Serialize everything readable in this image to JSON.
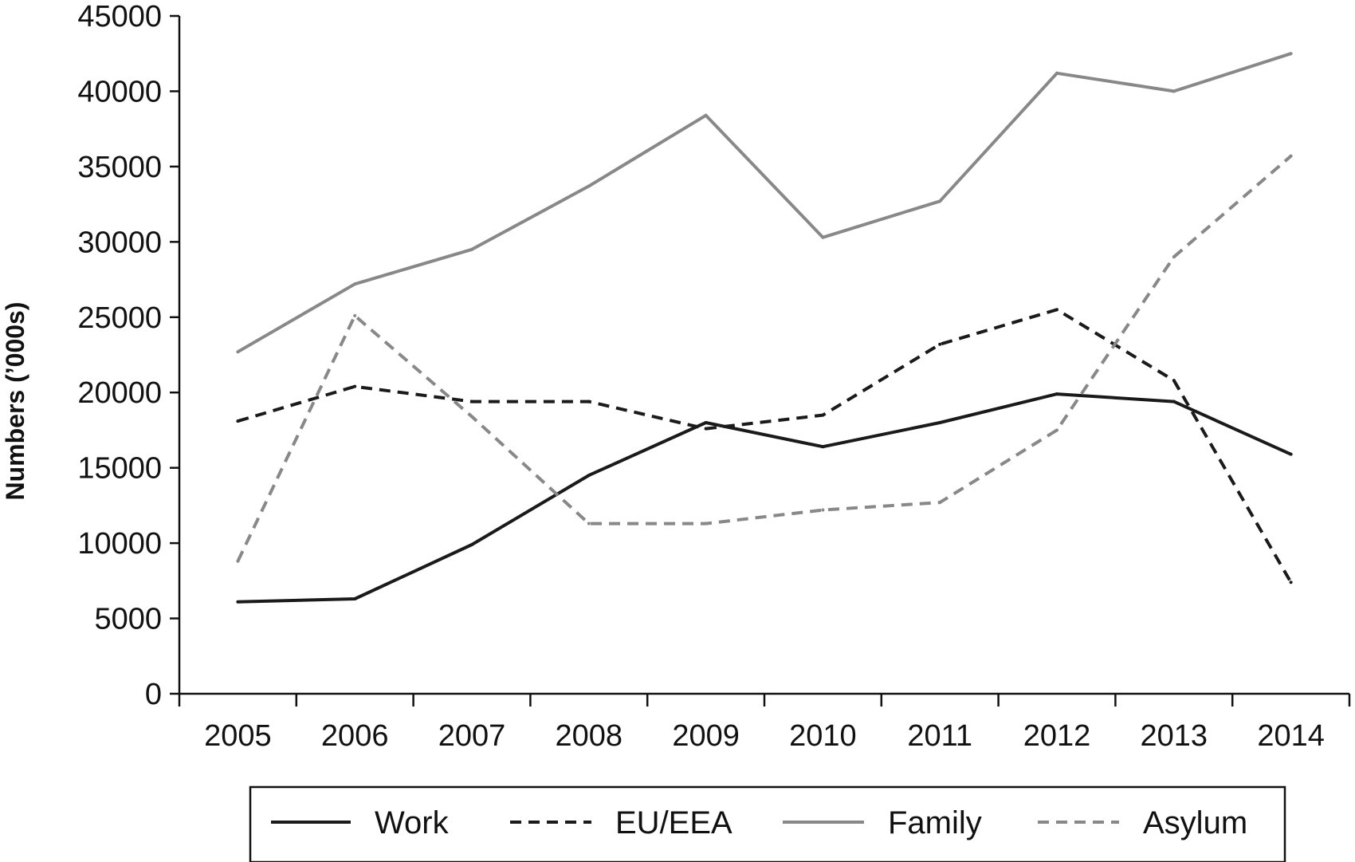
{
  "chart_data": {
    "type": "line",
    "title": "",
    "xlabel": "",
    "ylabel": "Numbers (’000s)",
    "categories": [
      "2005",
      "2006",
      "2007",
      "2008",
      "2009",
      "2010",
      "2011",
      "2012",
      "2013",
      "2014"
    ],
    "ylim": [
      0,
      45000
    ],
    "yticks": [
      "0",
      "5000",
      "10000",
      "15000",
      "20000",
      "25000",
      "30000",
      "35000",
      "40000",
      "45000"
    ],
    "grid": false,
    "legend_position": "bottom",
    "series": [
      {
        "name": "Work",
        "color": "#1a1a1a",
        "dash": "solid",
        "values": [
          6100,
          6300,
          9900,
          14500,
          18000,
          16400,
          18000,
          19900,
          19400,
          15900
        ]
      },
      {
        "name": "EU/EEA",
        "color": "#1a1a1a",
        "dash": "dashed",
        "values": [
          18100,
          20400,
          19400,
          19400,
          17600,
          18500,
          23200,
          25500,
          20800,
          7400
        ]
      },
      {
        "name": "Family",
        "color": "#888888",
        "dash": "solid",
        "values": [
          22700,
          27200,
          29500,
          33700,
          38400,
          30300,
          32700,
          41200,
          40000,
          42500
        ]
      },
      {
        "name": "Asylum",
        "color": "#888888",
        "dash": "dashed",
        "values": [
          8800,
          25100,
          18400,
          11300,
          11300,
          12200,
          12700,
          17500,
          29000,
          35700
        ]
      }
    ]
  }
}
